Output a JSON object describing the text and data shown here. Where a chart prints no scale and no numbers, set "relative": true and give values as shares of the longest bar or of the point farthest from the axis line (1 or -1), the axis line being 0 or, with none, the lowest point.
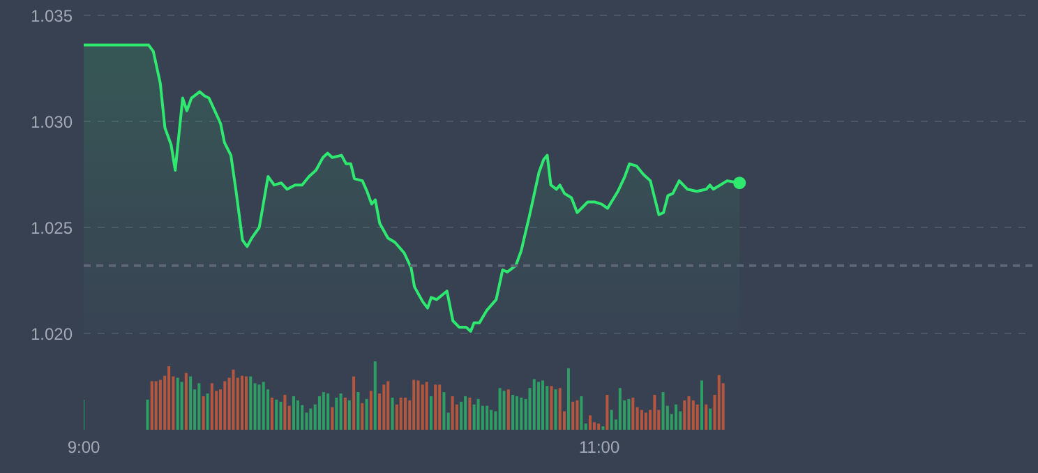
{
  "chart_data": [
    {
      "type": "area",
      "xlim": [
        9,
        12.68
      ],
      "ylim": [
        1.02,
        1.035
      ],
      "yticks": [
        {
          "value": 1.02,
          "label": "1.020"
        },
        1.025,
        {
          "value": 1.03,
          "label": "1.030"
        },
        1.035
      ],
      "grid": "y",
      "tick_labels": "y",
      "ref_lines": [
        {
          "axis": "y",
          "value": 1.0232,
          "color": "#5d6676",
          "line_style": "dashed"
        }
      ],
      "series": [
        {
          "type": "area",
          "color": "#2ee86f",
          "x": [
            9.0,
            9.252,
            9.27,
            9.297,
            9.315,
            9.339,
            9.355,
            9.384,
            9.4,
            9.418,
            9.45,
            9.469,
            9.486,
            9.531,
            9.546,
            9.571,
            9.591,
            9.616,
            9.634,
            9.652,
            9.681,
            9.715,
            9.739,
            9.766,
            9.789,
            9.82,
            9.847,
            9.874,
            9.901,
            9.928,
            9.946,
            9.964,
            10.0,
            10.018,
            10.036,
            10.05,
            10.081,
            10.099,
            10.117,
            10.131,
            10.148,
            10.18,
            10.207,
            10.243,
            10.27,
            10.283,
            10.315,
            10.334,
            10.348,
            10.369,
            10.409,
            10.432,
            10.456,
            10.483,
            10.501,
            10.514,
            10.535,
            10.564,
            10.6,
            10.625,
            10.643,
            10.676,
            10.697,
            10.73,
            10.766,
            10.784,
            10.798,
            10.812,
            10.834,
            10.847,
            10.865,
            10.892,
            10.914,
            10.955,
            10.982,
            11.009,
            11.032,
            11.072,
            11.099,
            11.117,
            11.144,
            11.171,
            11.198,
            11.231,
            11.249,
            11.266,
            11.285,
            11.31,
            11.342,
            11.378,
            11.415,
            11.429,
            11.442,
            11.469,
            11.496,
            11.544
          ],
          "values": [
            1.0336,
            1.0336,
            1.0333,
            1.0318,
            1.0297,
            1.0289,
            1.0277,
            1.0311,
            1.0305,
            1.0311,
            1.0314,
            1.0312,
            1.0311,
            1.0299,
            1.029,
            1.0284,
            1.0267,
            1.0244,
            1.0241,
            1.0245,
            1.025,
            1.0274,
            1.027,
            1.0271,
            1.0268,
            1.027,
            1.027,
            1.0274,
            1.0277,
            1.0283,
            1.0285,
            1.0283,
            1.0284,
            1.028,
            1.028,
            1.0273,
            1.0272,
            1.0267,
            1.0261,
            1.0263,
            1.0252,
            1.0245,
            1.0243,
            1.0238,
            1.0231,
            1.0222,
            1.0215,
            1.0212,
            1.0217,
            1.0216,
            1.022,
            1.0206,
            1.0203,
            1.0203,
            1.0201,
            1.0205,
            1.0205,
            1.0211,
            1.0216,
            1.023,
            1.0229,
            1.0232,
            1.0239,
            1.0256,
            1.0276,
            1.0282,
            1.0284,
            1.027,
            1.0268,
            1.027,
            1.0266,
            1.0264,
            1.0257,
            1.0262,
            1.0262,
            1.0261,
            1.0259,
            1.0267,
            1.0274,
            1.028,
            1.0279,
            1.0275,
            1.0272,
            1.0256,
            1.0257,
            1.0265,
            1.0266,
            1.0272,
            1.0268,
            1.0267,
            1.0268,
            1.027,
            1.0268,
            1.027,
            1.0272,
            1.0271
          ]
        },
        {
          "type": "scatter",
          "color": "#2ee86f",
          "marker": "circle",
          "x": [
            11.544
          ],
          "values": [
            1.0271
          ]
        }
      ]
    },
    {
      "type": "bar",
      "relative": true,
      "xlim": [
        9,
        12.68
      ],
      "xticks": [
        {
          "value": 9,
          "label": "9:00"
        },
        {
          "value": 11,
          "label": "11:00"
        }
      ],
      "tick_labels": "x",
      "x": [
        9.0,
        9.25,
        9.267,
        9.283,
        9.3,
        9.317,
        9.333,
        9.35,
        9.367,
        9.383,
        9.4,
        9.417,
        9.433,
        9.45,
        9.467,
        9.483,
        9.5,
        9.517,
        9.533,
        9.55,
        9.567,
        9.583,
        9.6,
        9.617,
        9.633,
        9.65,
        9.667,
        9.683,
        9.7,
        9.717,
        9.733,
        9.75,
        9.767,
        9.783,
        9.8,
        9.817,
        9.833,
        9.85,
        9.867,
        9.883,
        9.9,
        9.917,
        9.933,
        9.95,
        9.967,
        9.983,
        10.0,
        10.017,
        10.033,
        10.05,
        10.067,
        10.083,
        10.1,
        10.117,
        10.133,
        10.15,
        10.167,
        10.183,
        10.2,
        10.217,
        10.233,
        10.25,
        10.267,
        10.283,
        10.3,
        10.317,
        10.333,
        10.35,
        10.367,
        10.383,
        10.4,
        10.417,
        10.433,
        10.45,
        10.467,
        10.483,
        10.5,
        10.517,
        10.533,
        10.55,
        10.567,
        10.583,
        10.6,
        10.617,
        10.633,
        10.65,
        10.667,
        10.683,
        10.7,
        10.717,
        10.733,
        10.75,
        10.767,
        10.783,
        10.8,
        10.817,
        10.833,
        10.85,
        10.867,
        10.883,
        10.9,
        10.917,
        10.933,
        10.95,
        10.967,
        10.983,
        11.0,
        11.017,
        11.033,
        11.05,
        11.067,
        11.083,
        11.1,
        11.117,
        11.133,
        11.15,
        11.167,
        11.183,
        11.2,
        11.217,
        11.233,
        11.25,
        11.267,
        11.283,
        11.3,
        11.317,
        11.333,
        11.35,
        11.367,
        11.383,
        11.4,
        11.417,
        11.433,
        11.45,
        11.467,
        11.483
      ],
      "values": [
        0.44,
        0.44,
        0.71,
        0.71,
        0.73,
        0.79,
        0.93,
        0.78,
        0.76,
        0.7,
        0.83,
        0.78,
        0.59,
        0.68,
        0.49,
        0.53,
        0.68,
        0.57,
        0.59,
        0.71,
        0.76,
        0.88,
        0.76,
        0.79,
        0.78,
        0.78,
        0.68,
        0.66,
        0.7,
        0.59,
        0.47,
        0.44,
        0.41,
        0.51,
        0.35,
        0.49,
        0.43,
        0.36,
        0.25,
        0.31,
        0.37,
        0.49,
        0.55,
        0.53,
        0.33,
        0.47,
        0.53,
        0.47,
        0.43,
        0.78,
        0.55,
        0.39,
        0.45,
        0.57,
        1,
        0.53,
        0.66,
        0.71,
        0.47,
        0.37,
        0.47,
        0.47,
        0.43,
        0.73,
        0.72,
        0.66,
        0.7,
        0.49,
        0.66,
        0.66,
        0.55,
        0.25,
        0.49,
        0.37,
        0.41,
        0.49,
        0.47,
        0.37,
        0.45,
        0.35,
        0.35,
        0.29,
        0.27,
        0.61,
        0.57,
        0.59,
        0.51,
        0.49,
        0.47,
        0.45,
        0.61,
        0.74,
        0.7,
        0.72,
        0.64,
        0.64,
        0.59,
        0.61,
        0.27,
        0.9,
        0.41,
        0.43,
        0.49,
        0.09,
        0.21,
        0.11,
        0.09,
        0.05,
        0.51,
        0.29,
        0.15,
        0.61,
        0.43,
        0.45,
        0.47,
        0.33,
        0.29,
        0.25,
        0.29,
        0.51,
        0.29,
        0.55,
        0.35,
        0.23,
        0.37,
        0.27,
        0.43,
        0.49,
        0.43,
        0.37,
        0.72,
        0.37,
        0.31,
        0.51,
        0.8,
        0.68
      ],
      "colors": [
        "#2f9e64",
        "#2f9e64",
        "#b5573f",
        "#b5573f",
        "#b5573f",
        "#b5573f",
        "#b5573f",
        "#b5573f",
        "#2f9e64",
        "#2f9e64",
        "#b5573f",
        "#2f9e64",
        "#2f9e64",
        "#2f9e64",
        "#b5573f",
        "#2f9e64",
        "#b5573f",
        "#b5573f",
        "#b5573f",
        "#b5573f",
        "#b5573f",
        "#b5573f",
        "#b5573f",
        "#b5573f",
        "#b5573f",
        "#2f9e64",
        "#2f9e64",
        "#2f9e64",
        "#2f9e64",
        "#2f9e64",
        "#b5573f",
        "#2f9e64",
        "#2f9e64",
        "#b5573f",
        "#b5573f",
        "#2f9e64",
        "#2f9e64",
        "#2f9e64",
        "#2f9e64",
        "#2f9e64",
        "#2f9e64",
        "#2f9e64",
        "#2f9e64",
        "#2f9e64",
        "#b5573f",
        "#2f9e64",
        "#2f9e64",
        "#b5573f",
        "#2f9e64",
        "#b5573f",
        "#2f9e64",
        "#b5573f",
        "#2f9e64",
        "#b5573f",
        "#2f9e64",
        "#b5573f",
        "#b5573f",
        "#b5573f",
        "#2f9e64",
        "#b5573f",
        "#b5573f",
        "#b5573f",
        "#b5573f",
        "#b5573f",
        "#b5573f",
        "#b5573f",
        "#b5573f",
        "#2f9e64",
        "#b5573f",
        "#b5573f",
        "#2f9e64",
        "#2f9e64",
        "#b5573f",
        "#b5573f",
        "#2f9e64",
        "#2f9e64",
        "#b5573f",
        "#2f9e64",
        "#2f9e64",
        "#2f9e64",
        "#2f9e64",
        "#2f9e64",
        "#2f9e64",
        "#2f9e64",
        "#2f9e64",
        "#b5573f",
        "#2f9e64",
        "#2f9e64",
        "#2f9e64",
        "#2f9e64",
        "#2f9e64",
        "#2f9e64",
        "#2f9e64",
        "#2f9e64",
        "#2f9e64",
        "#b5573f",
        "#2f9e64",
        "#b5573f",
        "#b5573f",
        "#2f9e64",
        "#b5573f",
        "#b5573f",
        "#2f9e64",
        "#2f9e64",
        "#b5573f",
        "#b5573f",
        "#b5573f",
        "#2f9e64",
        "#b5573f",
        "#2f9e64",
        "#2f9e64",
        "#2f9e64",
        "#2f9e64",
        "#2f9e64",
        "#b5573f",
        "#b5573f",
        "#b5573f",
        "#b5573f",
        "#b5573f",
        "#b5573f",
        "#b5573f",
        "#2f9e64",
        "#2f9e64",
        "#2f9e64",
        "#2f9e64",
        "#2f9e64",
        "#b5573f",
        "#b5573f",
        "#b5573f",
        "#b5573f",
        "#2f9e64",
        "#b5573f",
        "#2f9e64",
        "#b5573f",
        "#b5573f",
        "#b5573f"
      ]
    }
  ]
}
